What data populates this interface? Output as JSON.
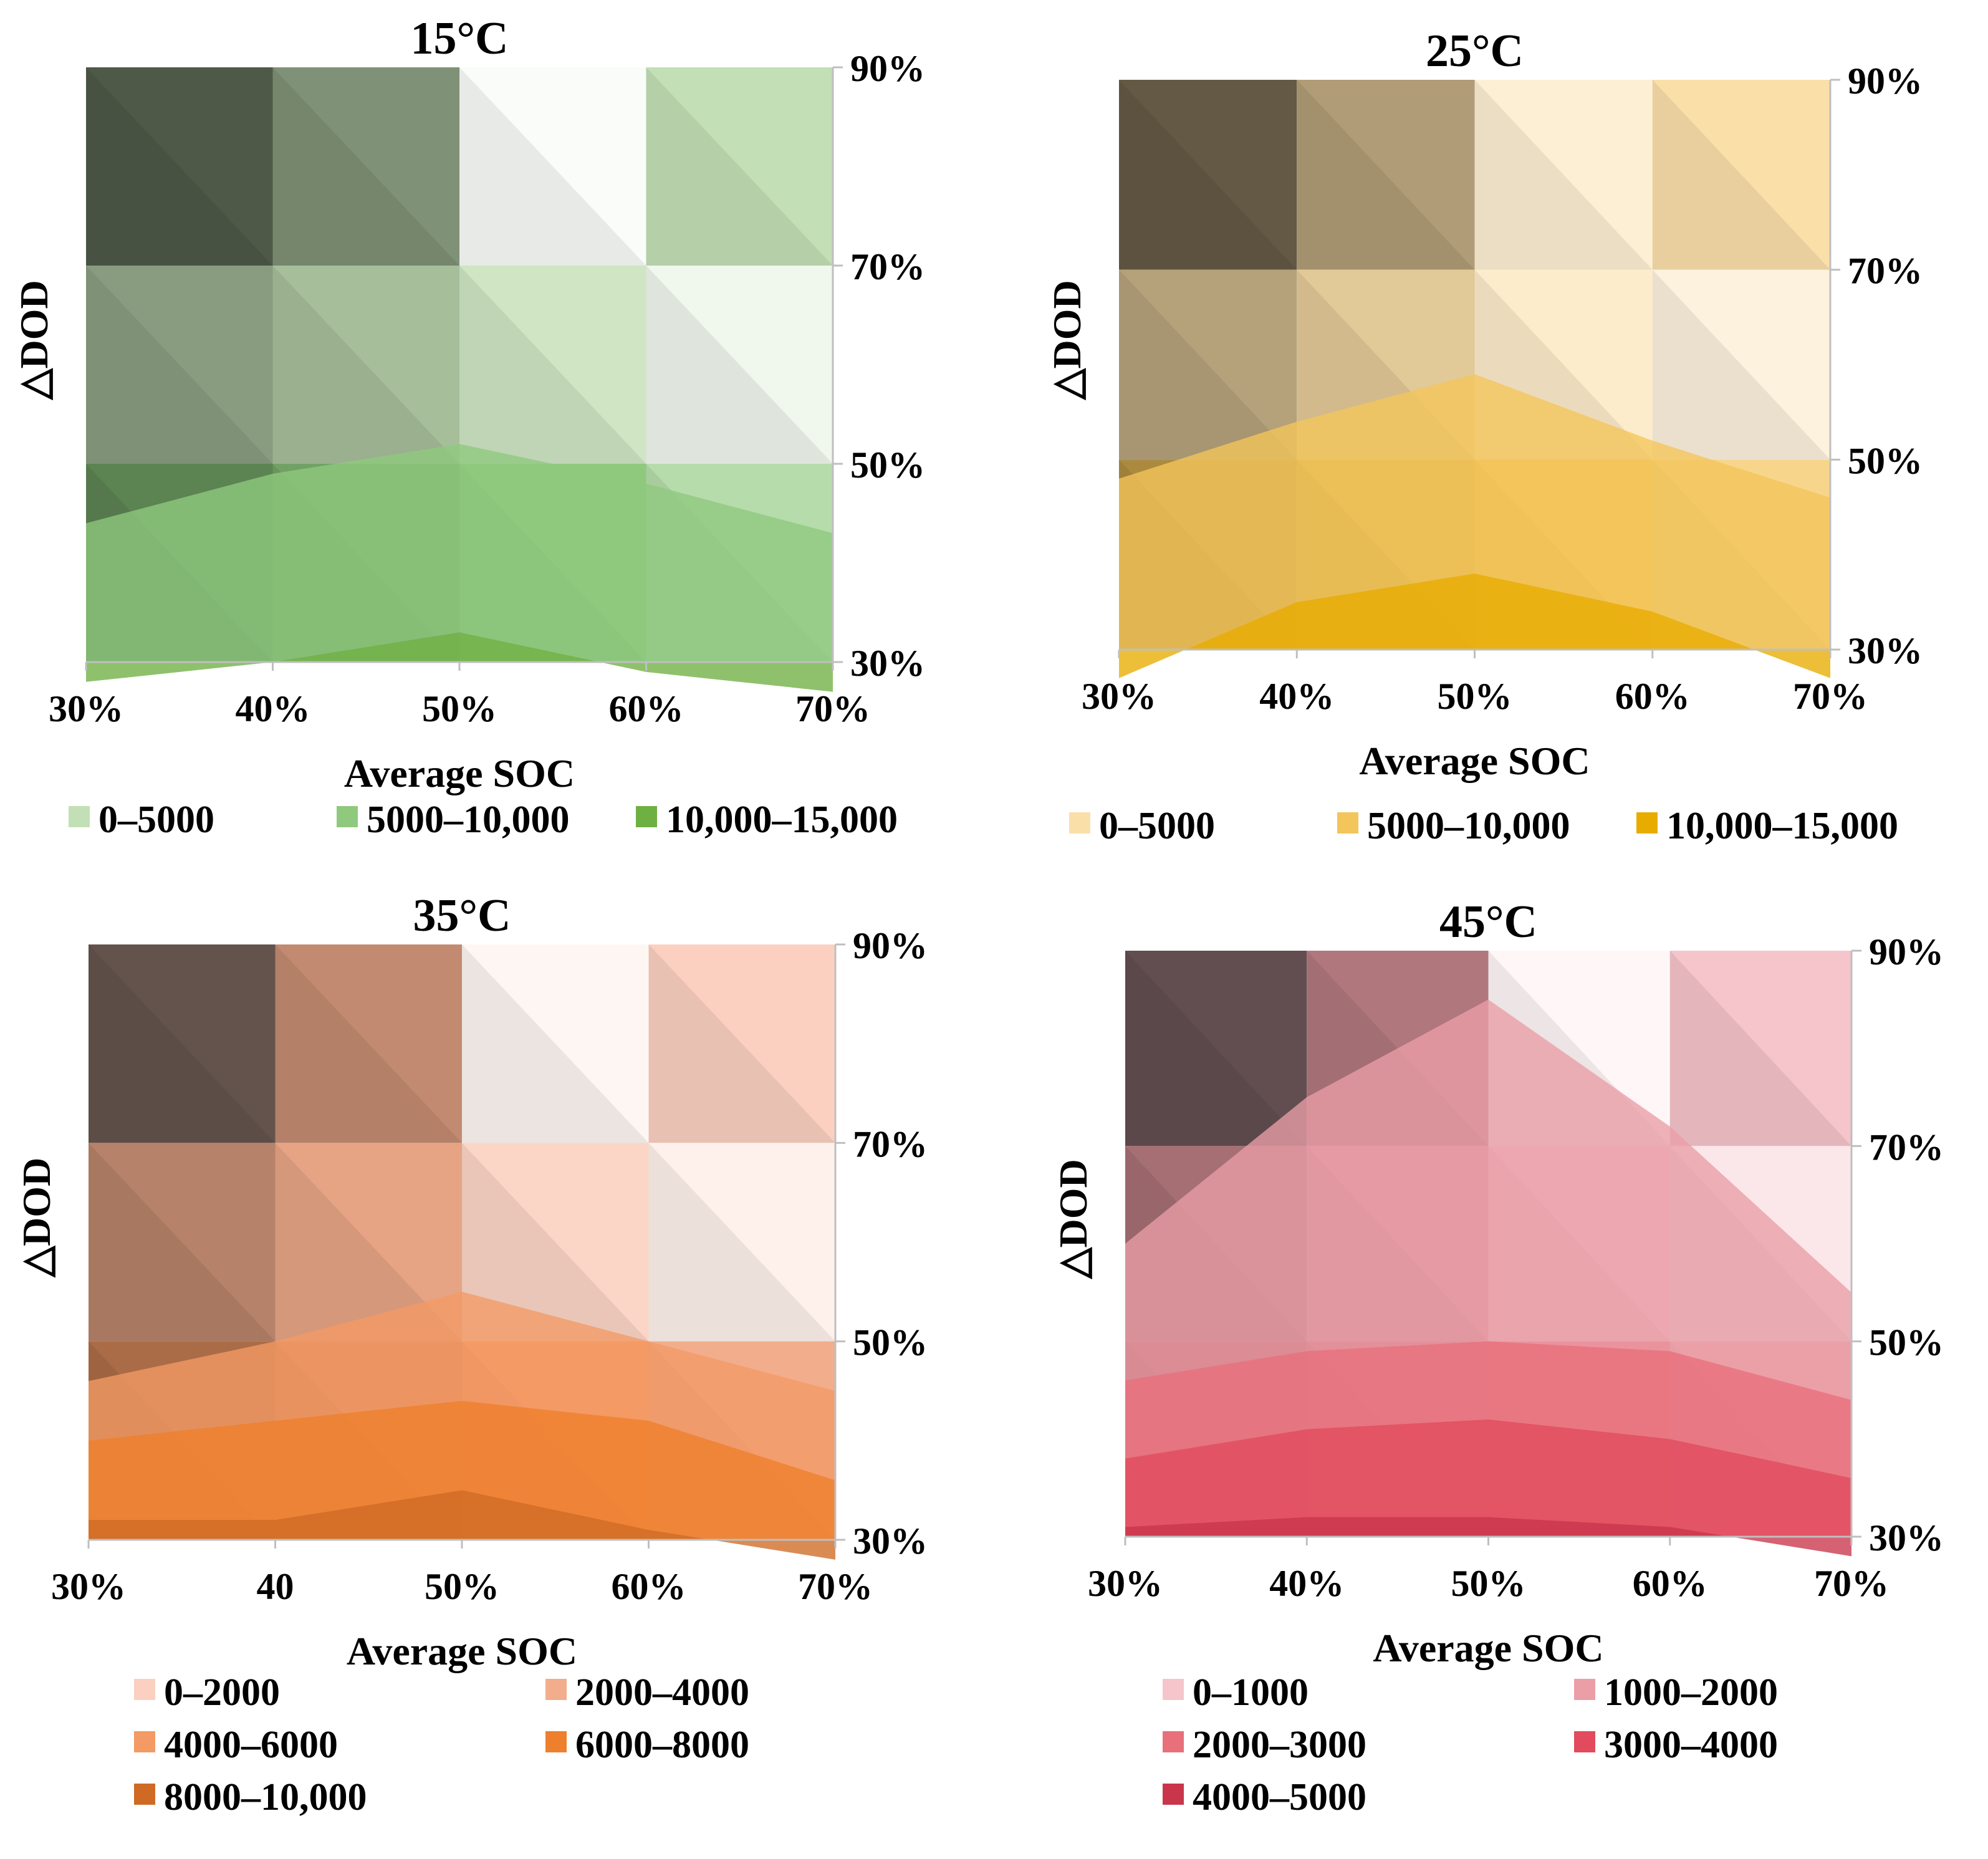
{
  "chart_data": [
    {
      "type": "heatmap",
      "title": "15°C",
      "xlabel": "Average SOC",
      "ylabel": "△DOD",
      "x_ticks": [
        "30%",
        "40%",
        "50%",
        "60%",
        "70%"
      ],
      "y_ticks": [
        "90%",
        "70%",
        "50%",
        "30%"
      ],
      "xlim": [
        30,
        70
      ],
      "ylim": [
        30,
        90
      ],
      "colors": [
        "#c3dfb5",
        "#8ec97e",
        "#6fb043"
      ],
      "legend": [
        "0–5000",
        "5000–10,000",
        "10,000–15,000"
      ],
      "legend_layout": "row",
      "cells": [
        {
          "soc": [
            30,
            40
          ],
          "dod": [
            70,
            90
          ],
          "level": 0,
          "shade": 0.6
        },
        {
          "soc": [
            40,
            50
          ],
          "dod": [
            70,
            90
          ],
          "level": 0,
          "shade": 0.35
        },
        {
          "soc": [
            50,
            60
          ],
          "dod": [
            70,
            90
          ],
          "level": 0,
          "shade": -0.9
        },
        {
          "soc": [
            60,
            70
          ],
          "dod": [
            70,
            90
          ],
          "level": 0,
          "shade": 0.0
        },
        {
          "soc": [
            30,
            40
          ],
          "dod": [
            50,
            70
          ],
          "level": 0,
          "shade": 0.3
        },
        {
          "soc": [
            40,
            50
          ],
          "dod": [
            50,
            70
          ],
          "level": 0,
          "shade": 0.15
        },
        {
          "soc": [
            50,
            60
          ],
          "dod": [
            50,
            70
          ],
          "level": 0,
          "shade": -0.2
        },
        {
          "soc": [
            60,
            70
          ],
          "dod": [
            50,
            70
          ],
          "level": 0,
          "shade": -0.75
        },
        {
          "soc": [
            30,
            40
          ],
          "dod": [
            30,
            50
          ],
          "level": 1,
          "shade": 0.35
        },
        {
          "soc": [
            40,
            50
          ],
          "dod": [
            30,
            50
          ],
          "level": 1,
          "shade": 0.2
        },
        {
          "soc": [
            50,
            60
          ],
          "dod": [
            30,
            50
          ],
          "level": 1,
          "shade": 0.0
        },
        {
          "soc": [
            60,
            70
          ],
          "dod": [
            30,
            50
          ],
          "level": 1,
          "shade": -0.35
        }
      ],
      "bands": [
        {
          "level": 1,
          "dod": [
            44,
            49,
            52,
            48,
            43
          ]
        },
        {
          "level": 2,
          "dod": [
            28,
            30,
            33,
            29,
            27
          ]
        }
      ]
    },
    {
      "type": "heatmap",
      "title": "25°C",
      "xlabel": "Average SOC",
      "ylabel": "△DOD",
      "x_ticks": [
        "30%",
        "40%",
        "50%",
        "60%",
        "70%"
      ],
      "y_ticks": [
        "90%",
        "70%",
        "50%",
        "30%"
      ],
      "xlim": [
        30,
        70
      ],
      "ylim": [
        30,
        90
      ],
      "colors": [
        "#fbdfa9",
        "#f4c55a",
        "#e8ac00"
      ],
      "legend": [
        "0–5000",
        "5000–10,000",
        "10,000–15,000"
      ],
      "legend_layout": "row",
      "cells": [
        {
          "soc": [
            30,
            40
          ],
          "dod": [
            70,
            90
          ],
          "level": 0,
          "shade": 0.6
        },
        {
          "soc": [
            40,
            50
          ],
          "dod": [
            70,
            90
          ],
          "level": 0,
          "shade": 0.3
        },
        {
          "soc": [
            50,
            60
          ],
          "dod": [
            70,
            90
          ],
          "level": 0,
          "shade": -0.5
        },
        {
          "soc": [
            60,
            70
          ],
          "dod": [
            70,
            90
          ],
          "level": 0,
          "shade": 0.0
        },
        {
          "soc": [
            30,
            40
          ],
          "dod": [
            50,
            70
          ],
          "level": 0,
          "shade": 0.28
        },
        {
          "soc": [
            40,
            50
          ],
          "dod": [
            50,
            70
          ],
          "level": 0,
          "shade": 0.1
        },
        {
          "soc": [
            50,
            60
          ],
          "dod": [
            50,
            70
          ],
          "level": 0,
          "shade": -0.4
        },
        {
          "soc": [
            60,
            70
          ],
          "dod": [
            50,
            70
          ],
          "level": 0,
          "shade": -0.6
        },
        {
          "soc": [
            30,
            40
          ],
          "dod": [
            30,
            50
          ],
          "level": 1,
          "shade": 0.3
        },
        {
          "soc": [
            40,
            50
          ],
          "dod": [
            30,
            50
          ],
          "level": 1,
          "shade": 0.15
        },
        {
          "soc": [
            50,
            60
          ],
          "dod": [
            30,
            50
          ],
          "level": 1,
          "shade": 0.0
        },
        {
          "soc": [
            60,
            70
          ],
          "dod": [
            30,
            50
          ],
          "level": 1,
          "shade": -0.3
        }
      ],
      "bands": [
        {
          "level": 1,
          "dod": [
            48,
            54,
            59,
            52,
            46
          ]
        },
        {
          "level": 2,
          "dod": [
            27,
            35,
            38,
            34,
            27
          ]
        }
      ]
    },
    {
      "type": "heatmap",
      "title": "35°C",
      "xlabel": "Average SOC",
      "ylabel": "△DOD",
      "x_ticks": [
        "30%",
        "40",
        "50%",
        "60%",
        "70%"
      ],
      "y_ticks": [
        "90%",
        "70%",
        "50%",
        "30%"
      ],
      "xlim": [
        30,
        70
      ],
      "ylim": [
        30,
        90
      ],
      "colors": [
        "#fbd0c0",
        "#f2ad8c",
        "#f39a65",
        "#ee7f2c",
        "#cf6a24"
      ],
      "legend": [
        "0–2000",
        "2000–4000",
        "4000–6000",
        "6000–8000",
        "8000–10,000"
      ],
      "legend_layout": "grid",
      "cells": [
        {
          "soc": [
            30,
            40
          ],
          "dod": [
            70,
            90
          ],
          "level": 0,
          "shade": 0.6
        },
        {
          "soc": [
            40,
            50
          ],
          "dod": [
            70,
            90
          ],
          "level": 1,
          "shade": 0.2
        },
        {
          "soc": [
            50,
            60
          ],
          "dod": [
            70,
            90
          ],
          "level": 0,
          "shade": -0.8
        },
        {
          "soc": [
            60,
            70
          ],
          "dod": [
            70,
            90
          ],
          "level": 0,
          "shade": 0.0
        },
        {
          "soc": [
            30,
            40
          ],
          "dod": [
            50,
            70
          ],
          "level": 1,
          "shade": 0.25
        },
        {
          "soc": [
            40,
            50
          ],
          "dod": [
            50,
            70
          ],
          "level": 1,
          "shade": 0.05
        },
        {
          "soc": [
            50,
            60
          ],
          "dod": [
            50,
            70
          ],
          "level": 0,
          "shade": -0.1
        },
        {
          "soc": [
            60,
            70
          ],
          "dod": [
            50,
            70
          ],
          "level": 0,
          "shade": -0.7
        },
        {
          "soc": [
            30,
            40
          ],
          "dod": [
            30,
            50
          ],
          "level": 2,
          "shade": 0.3
        },
        {
          "soc": [
            40,
            50
          ],
          "dod": [
            30,
            50
          ],
          "level": 2,
          "shade": 0.15
        },
        {
          "soc": [
            50,
            60
          ],
          "dod": [
            30,
            50
          ],
          "level": 2,
          "shade": 0.0
        },
        {
          "soc": [
            60,
            70
          ],
          "dod": [
            30,
            50
          ],
          "level": 1,
          "shade": 0.0
        }
      ],
      "bands": [
        {
          "level": 2,
          "dod": [
            46,
            50,
            55,
            50,
            45
          ]
        },
        {
          "level": 3,
          "dod": [
            40,
            42,
            44,
            42,
            36
          ]
        },
        {
          "level": 4,
          "dod": [
            32,
            32,
            35,
            31,
            28
          ]
        }
      ]
    },
    {
      "type": "heatmap",
      "title": "45°C",
      "xlabel": "Average SOC",
      "ylabel": "△DOD",
      "x_ticks": [
        "30%",
        "40%",
        "50%",
        "60%",
        "70%"
      ],
      "y_ticks": [
        "90%",
        "70%",
        "50%",
        "30%"
      ],
      "xlim": [
        30,
        70
      ],
      "ylim": [
        30,
        90
      ],
      "colors": [
        "#f6c4cb",
        "#eb9ea6",
        "#e8707b",
        "#e24a5d",
        "#c9364b"
      ],
      "legend": [
        "0–1000",
        "1000–2000",
        "2000–3000",
        "3000–4000",
        "4000–5000"
      ],
      "legend_layout": "grid",
      "cells": [
        {
          "soc": [
            30,
            40
          ],
          "dod": [
            70,
            90
          ],
          "level": 0,
          "shade": 0.6
        },
        {
          "soc": [
            40,
            50
          ],
          "dod": [
            70,
            90
          ],
          "level": 1,
          "shade": 0.25
        },
        {
          "soc": [
            50,
            60
          ],
          "dod": [
            70,
            90
          ],
          "level": 0,
          "shade": -0.85
        },
        {
          "soc": [
            60,
            70
          ],
          "dod": [
            70,
            90
          ],
          "level": 0,
          "shade": 0.0
        },
        {
          "soc": [
            30,
            40
          ],
          "dod": [
            50,
            70
          ],
          "level": 1,
          "shade": 0.3
        },
        {
          "soc": [
            40,
            50
          ],
          "dod": [
            50,
            70
          ],
          "level": 1,
          "shade": 0.1
        },
        {
          "soc": [
            50,
            60
          ],
          "dod": [
            50,
            70
          ],
          "level": 0,
          "shade": -0.1
        },
        {
          "soc": [
            60,
            70
          ],
          "dod": [
            50,
            70
          ],
          "level": 0,
          "shade": -0.6
        },
        {
          "soc": [
            30,
            40
          ],
          "dod": [
            30,
            50
          ],
          "level": 2,
          "shade": 0.3
        },
        {
          "soc": [
            40,
            50
          ],
          "dod": [
            30,
            50
          ],
          "level": 2,
          "shade": 0.15
        },
        {
          "soc": [
            50,
            60
          ],
          "dod": [
            30,
            50
          ],
          "level": 2,
          "shade": 0.0
        },
        {
          "soc": [
            60,
            70
          ],
          "dod": [
            30,
            50
          ],
          "level": 1,
          "shade": -0.1
        }
      ],
      "bands": [
        {
          "level": 1,
          "dod": [
            60,
            75,
            85,
            72,
            55
          ]
        },
        {
          "level": 2,
          "dod": [
            46,
            49,
            50,
            49,
            44
          ]
        },
        {
          "level": 3,
          "dod": [
            38,
            41,
            42,
            40,
            36
          ]
        },
        {
          "level": 4,
          "dod": [
            31,
            32,
            32,
            31,
            28
          ]
        }
      ]
    }
  ]
}
